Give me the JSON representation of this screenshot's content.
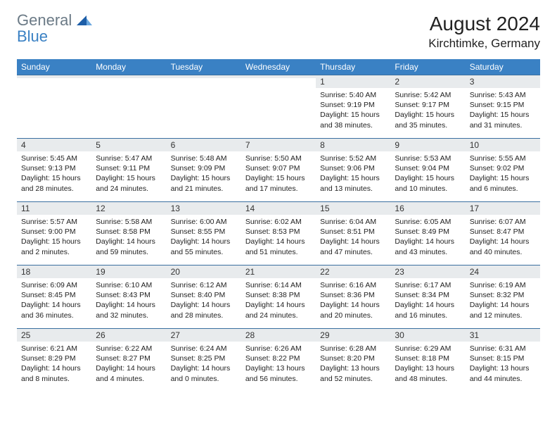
{
  "logo": {
    "general": "General",
    "blue": "Blue"
  },
  "title": "August 2024",
  "location": "Kirchtimke, Germany",
  "colors": {
    "header_bg": "#3a81c4",
    "header_text": "#ffffff",
    "daynum_bg": "#e8ebed",
    "cell_border": "#3a6fa0",
    "logo_gray": "#6b7a86",
    "logo_blue": "#3a81c4"
  },
  "weekdays": [
    "Sunday",
    "Monday",
    "Tuesday",
    "Wednesday",
    "Thursday",
    "Friday",
    "Saturday"
  ],
  "grid": [
    [
      {
        "empty": true
      },
      {
        "empty": true
      },
      {
        "empty": true
      },
      {
        "empty": true
      },
      {
        "day": "1",
        "sunrise": "Sunrise: 5:40 AM",
        "sunset": "Sunset: 9:19 PM",
        "daylight": "Daylight: 15 hours and 38 minutes."
      },
      {
        "day": "2",
        "sunrise": "Sunrise: 5:42 AM",
        "sunset": "Sunset: 9:17 PM",
        "daylight": "Daylight: 15 hours and 35 minutes."
      },
      {
        "day": "3",
        "sunrise": "Sunrise: 5:43 AM",
        "sunset": "Sunset: 9:15 PM",
        "daylight": "Daylight: 15 hours and 31 minutes."
      }
    ],
    [
      {
        "day": "4",
        "sunrise": "Sunrise: 5:45 AM",
        "sunset": "Sunset: 9:13 PM",
        "daylight": "Daylight: 15 hours and 28 minutes."
      },
      {
        "day": "5",
        "sunrise": "Sunrise: 5:47 AM",
        "sunset": "Sunset: 9:11 PM",
        "daylight": "Daylight: 15 hours and 24 minutes."
      },
      {
        "day": "6",
        "sunrise": "Sunrise: 5:48 AM",
        "sunset": "Sunset: 9:09 PM",
        "daylight": "Daylight: 15 hours and 21 minutes."
      },
      {
        "day": "7",
        "sunrise": "Sunrise: 5:50 AM",
        "sunset": "Sunset: 9:07 PM",
        "daylight": "Daylight: 15 hours and 17 minutes."
      },
      {
        "day": "8",
        "sunrise": "Sunrise: 5:52 AM",
        "sunset": "Sunset: 9:06 PM",
        "daylight": "Daylight: 15 hours and 13 minutes."
      },
      {
        "day": "9",
        "sunrise": "Sunrise: 5:53 AM",
        "sunset": "Sunset: 9:04 PM",
        "daylight": "Daylight: 15 hours and 10 minutes."
      },
      {
        "day": "10",
        "sunrise": "Sunrise: 5:55 AM",
        "sunset": "Sunset: 9:02 PM",
        "daylight": "Daylight: 15 hours and 6 minutes."
      }
    ],
    [
      {
        "day": "11",
        "sunrise": "Sunrise: 5:57 AM",
        "sunset": "Sunset: 9:00 PM",
        "daylight": "Daylight: 15 hours and 2 minutes."
      },
      {
        "day": "12",
        "sunrise": "Sunrise: 5:58 AM",
        "sunset": "Sunset: 8:58 PM",
        "daylight": "Daylight: 14 hours and 59 minutes."
      },
      {
        "day": "13",
        "sunrise": "Sunrise: 6:00 AM",
        "sunset": "Sunset: 8:55 PM",
        "daylight": "Daylight: 14 hours and 55 minutes."
      },
      {
        "day": "14",
        "sunrise": "Sunrise: 6:02 AM",
        "sunset": "Sunset: 8:53 PM",
        "daylight": "Daylight: 14 hours and 51 minutes."
      },
      {
        "day": "15",
        "sunrise": "Sunrise: 6:04 AM",
        "sunset": "Sunset: 8:51 PM",
        "daylight": "Daylight: 14 hours and 47 minutes."
      },
      {
        "day": "16",
        "sunrise": "Sunrise: 6:05 AM",
        "sunset": "Sunset: 8:49 PM",
        "daylight": "Daylight: 14 hours and 43 minutes."
      },
      {
        "day": "17",
        "sunrise": "Sunrise: 6:07 AM",
        "sunset": "Sunset: 8:47 PM",
        "daylight": "Daylight: 14 hours and 40 minutes."
      }
    ],
    [
      {
        "day": "18",
        "sunrise": "Sunrise: 6:09 AM",
        "sunset": "Sunset: 8:45 PM",
        "daylight": "Daylight: 14 hours and 36 minutes."
      },
      {
        "day": "19",
        "sunrise": "Sunrise: 6:10 AM",
        "sunset": "Sunset: 8:43 PM",
        "daylight": "Daylight: 14 hours and 32 minutes."
      },
      {
        "day": "20",
        "sunrise": "Sunrise: 6:12 AM",
        "sunset": "Sunset: 8:40 PM",
        "daylight": "Daylight: 14 hours and 28 minutes."
      },
      {
        "day": "21",
        "sunrise": "Sunrise: 6:14 AM",
        "sunset": "Sunset: 8:38 PM",
        "daylight": "Daylight: 14 hours and 24 minutes."
      },
      {
        "day": "22",
        "sunrise": "Sunrise: 6:16 AM",
        "sunset": "Sunset: 8:36 PM",
        "daylight": "Daylight: 14 hours and 20 minutes."
      },
      {
        "day": "23",
        "sunrise": "Sunrise: 6:17 AM",
        "sunset": "Sunset: 8:34 PM",
        "daylight": "Daylight: 14 hours and 16 minutes."
      },
      {
        "day": "24",
        "sunrise": "Sunrise: 6:19 AM",
        "sunset": "Sunset: 8:32 PM",
        "daylight": "Daylight: 14 hours and 12 minutes."
      }
    ],
    [
      {
        "day": "25",
        "sunrise": "Sunrise: 6:21 AM",
        "sunset": "Sunset: 8:29 PM",
        "daylight": "Daylight: 14 hours and 8 minutes."
      },
      {
        "day": "26",
        "sunrise": "Sunrise: 6:22 AM",
        "sunset": "Sunset: 8:27 PM",
        "daylight": "Daylight: 14 hours and 4 minutes."
      },
      {
        "day": "27",
        "sunrise": "Sunrise: 6:24 AM",
        "sunset": "Sunset: 8:25 PM",
        "daylight": "Daylight: 14 hours and 0 minutes."
      },
      {
        "day": "28",
        "sunrise": "Sunrise: 6:26 AM",
        "sunset": "Sunset: 8:22 PM",
        "daylight": "Daylight: 13 hours and 56 minutes."
      },
      {
        "day": "29",
        "sunrise": "Sunrise: 6:28 AM",
        "sunset": "Sunset: 8:20 PM",
        "daylight": "Daylight: 13 hours and 52 minutes."
      },
      {
        "day": "30",
        "sunrise": "Sunrise: 6:29 AM",
        "sunset": "Sunset: 8:18 PM",
        "daylight": "Daylight: 13 hours and 48 minutes."
      },
      {
        "day": "31",
        "sunrise": "Sunrise: 6:31 AM",
        "sunset": "Sunset: 8:15 PM",
        "daylight": "Daylight: 13 hours and 44 minutes."
      }
    ]
  ]
}
